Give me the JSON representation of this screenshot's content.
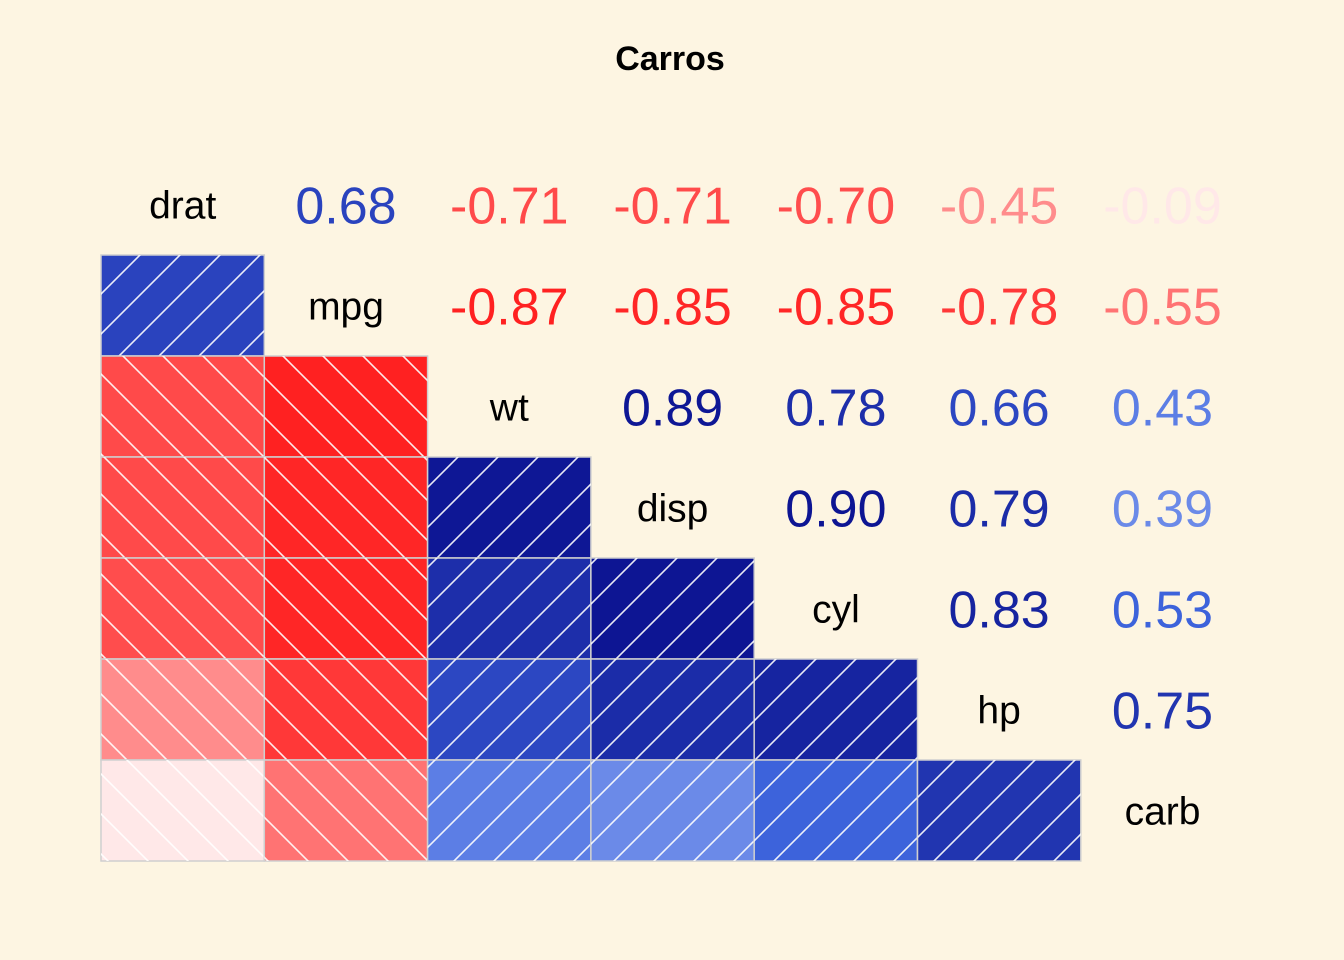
{
  "chart_data": {
    "type": "heatmap",
    "title": "Carros",
    "variables": [
      "drat",
      "mpg",
      "wt",
      "disp",
      "cyl",
      "hp",
      "carb"
    ],
    "matrix": [
      [
        1.0,
        0.68,
        -0.71,
        -0.71,
        -0.7,
        -0.45,
        -0.09
      ],
      [
        0.68,
        1.0,
        -0.87,
        -0.85,
        -0.85,
        -0.78,
        -0.55
      ],
      [
        -0.71,
        -0.87,
        1.0,
        0.89,
        0.78,
        0.66,
        0.43
      ],
      [
        -0.71,
        -0.85,
        0.89,
        1.0,
        0.9,
        0.79,
        0.39
      ],
      [
        -0.7,
        -0.85,
        0.78,
        0.9,
        1.0,
        0.83,
        0.53
      ],
      [
        -0.45,
        -0.78,
        0.66,
        0.79,
        0.83,
        1.0,
        0.75
      ],
      [
        -0.09,
        -0.55,
        0.43,
        0.39,
        0.53,
        0.75,
        1.0
      ]
    ],
    "upper_triangle": "coefficient numbers",
    "lower_triangle": "shaded squares",
    "number_format": "2 decimals",
    "color_scale": {
      "negative": "#ff0000",
      "zero": "#ffffff",
      "positive": "#00007f"
    }
  }
}
